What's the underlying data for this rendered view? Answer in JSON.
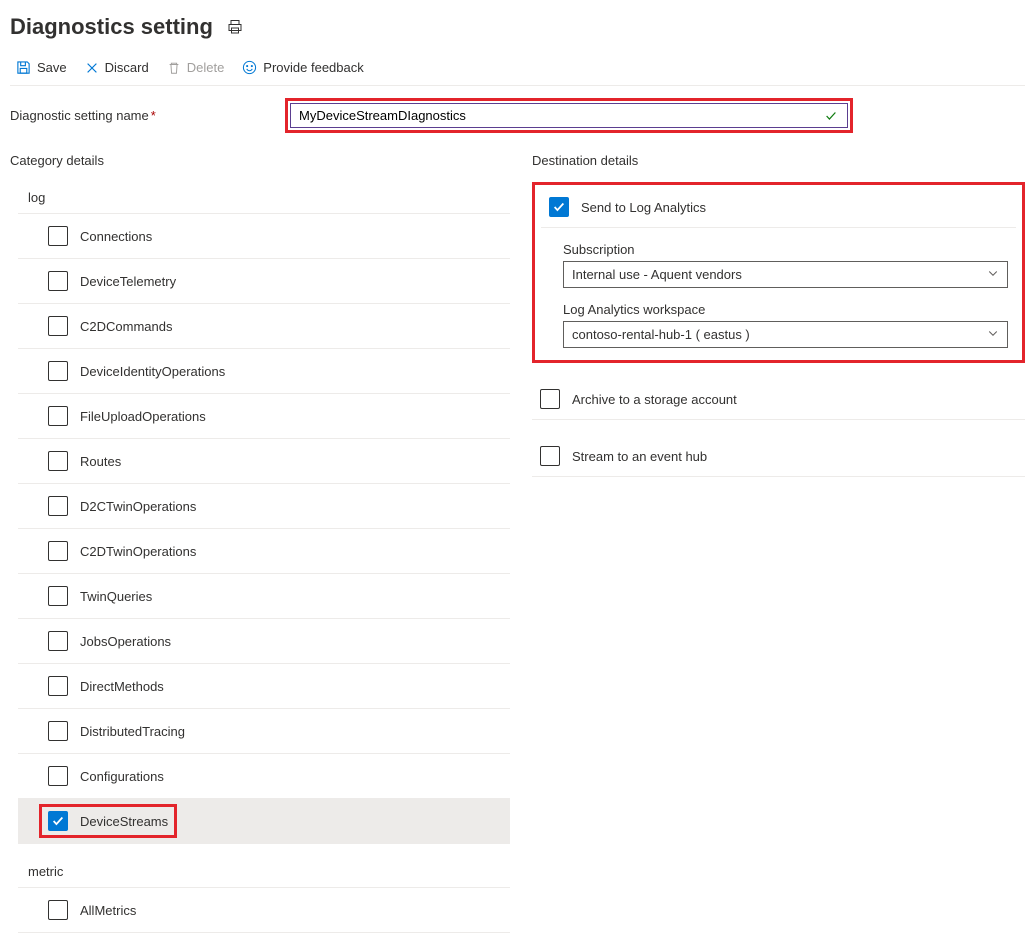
{
  "page": {
    "title": "Diagnostics setting"
  },
  "toolbar": {
    "save": "Save",
    "discard": "Discard",
    "delete": "Delete",
    "feedback": "Provide feedback"
  },
  "nameField": {
    "label": "Diagnostic setting name",
    "value": "MyDeviceStreamDIagnostics"
  },
  "columns": {
    "category": "Category details",
    "destination": "Destination details"
  },
  "groups": {
    "log": "log",
    "metric": "metric"
  },
  "logs": [
    {
      "label": "Connections",
      "checked": false,
      "highlight": false
    },
    {
      "label": "DeviceTelemetry",
      "checked": false,
      "highlight": false
    },
    {
      "label": "C2DCommands",
      "checked": false,
      "highlight": false
    },
    {
      "label": "DeviceIdentityOperations",
      "checked": false,
      "highlight": false
    },
    {
      "label": "FileUploadOperations",
      "checked": false,
      "highlight": false
    },
    {
      "label": "Routes",
      "checked": false,
      "highlight": false
    },
    {
      "label": "D2CTwinOperations",
      "checked": false,
      "highlight": false
    },
    {
      "label": "C2DTwinOperations",
      "checked": false,
      "highlight": false
    },
    {
      "label": "TwinQueries",
      "checked": false,
      "highlight": false
    },
    {
      "label": "JobsOperations",
      "checked": false,
      "highlight": false
    },
    {
      "label": "DirectMethods",
      "checked": false,
      "highlight": false
    },
    {
      "label": "DistributedTracing",
      "checked": false,
      "highlight": false
    },
    {
      "label": "Configurations",
      "checked": false,
      "highlight": false
    },
    {
      "label": "DeviceStreams",
      "checked": true,
      "highlight": true
    }
  ],
  "metrics": [
    {
      "label": "AllMetrics",
      "checked": false
    }
  ],
  "dest": {
    "logAnalytics": {
      "label": "Send to Log Analytics",
      "checked": true,
      "subscriptionLabel": "Subscription",
      "subscriptionValue": "Internal use - Aquent vendors",
      "workspaceLabel": "Log Analytics workspace",
      "workspaceValue": "contoso-rental-hub-1 ( eastus )"
    },
    "storage": {
      "label": "Archive to a storage account",
      "checked": false
    },
    "eventhub": {
      "label": "Stream to an event hub",
      "checked": false
    }
  },
  "colors": {
    "accent": "#0078d4",
    "highlight": "#e3242b",
    "success": "#107c10"
  }
}
